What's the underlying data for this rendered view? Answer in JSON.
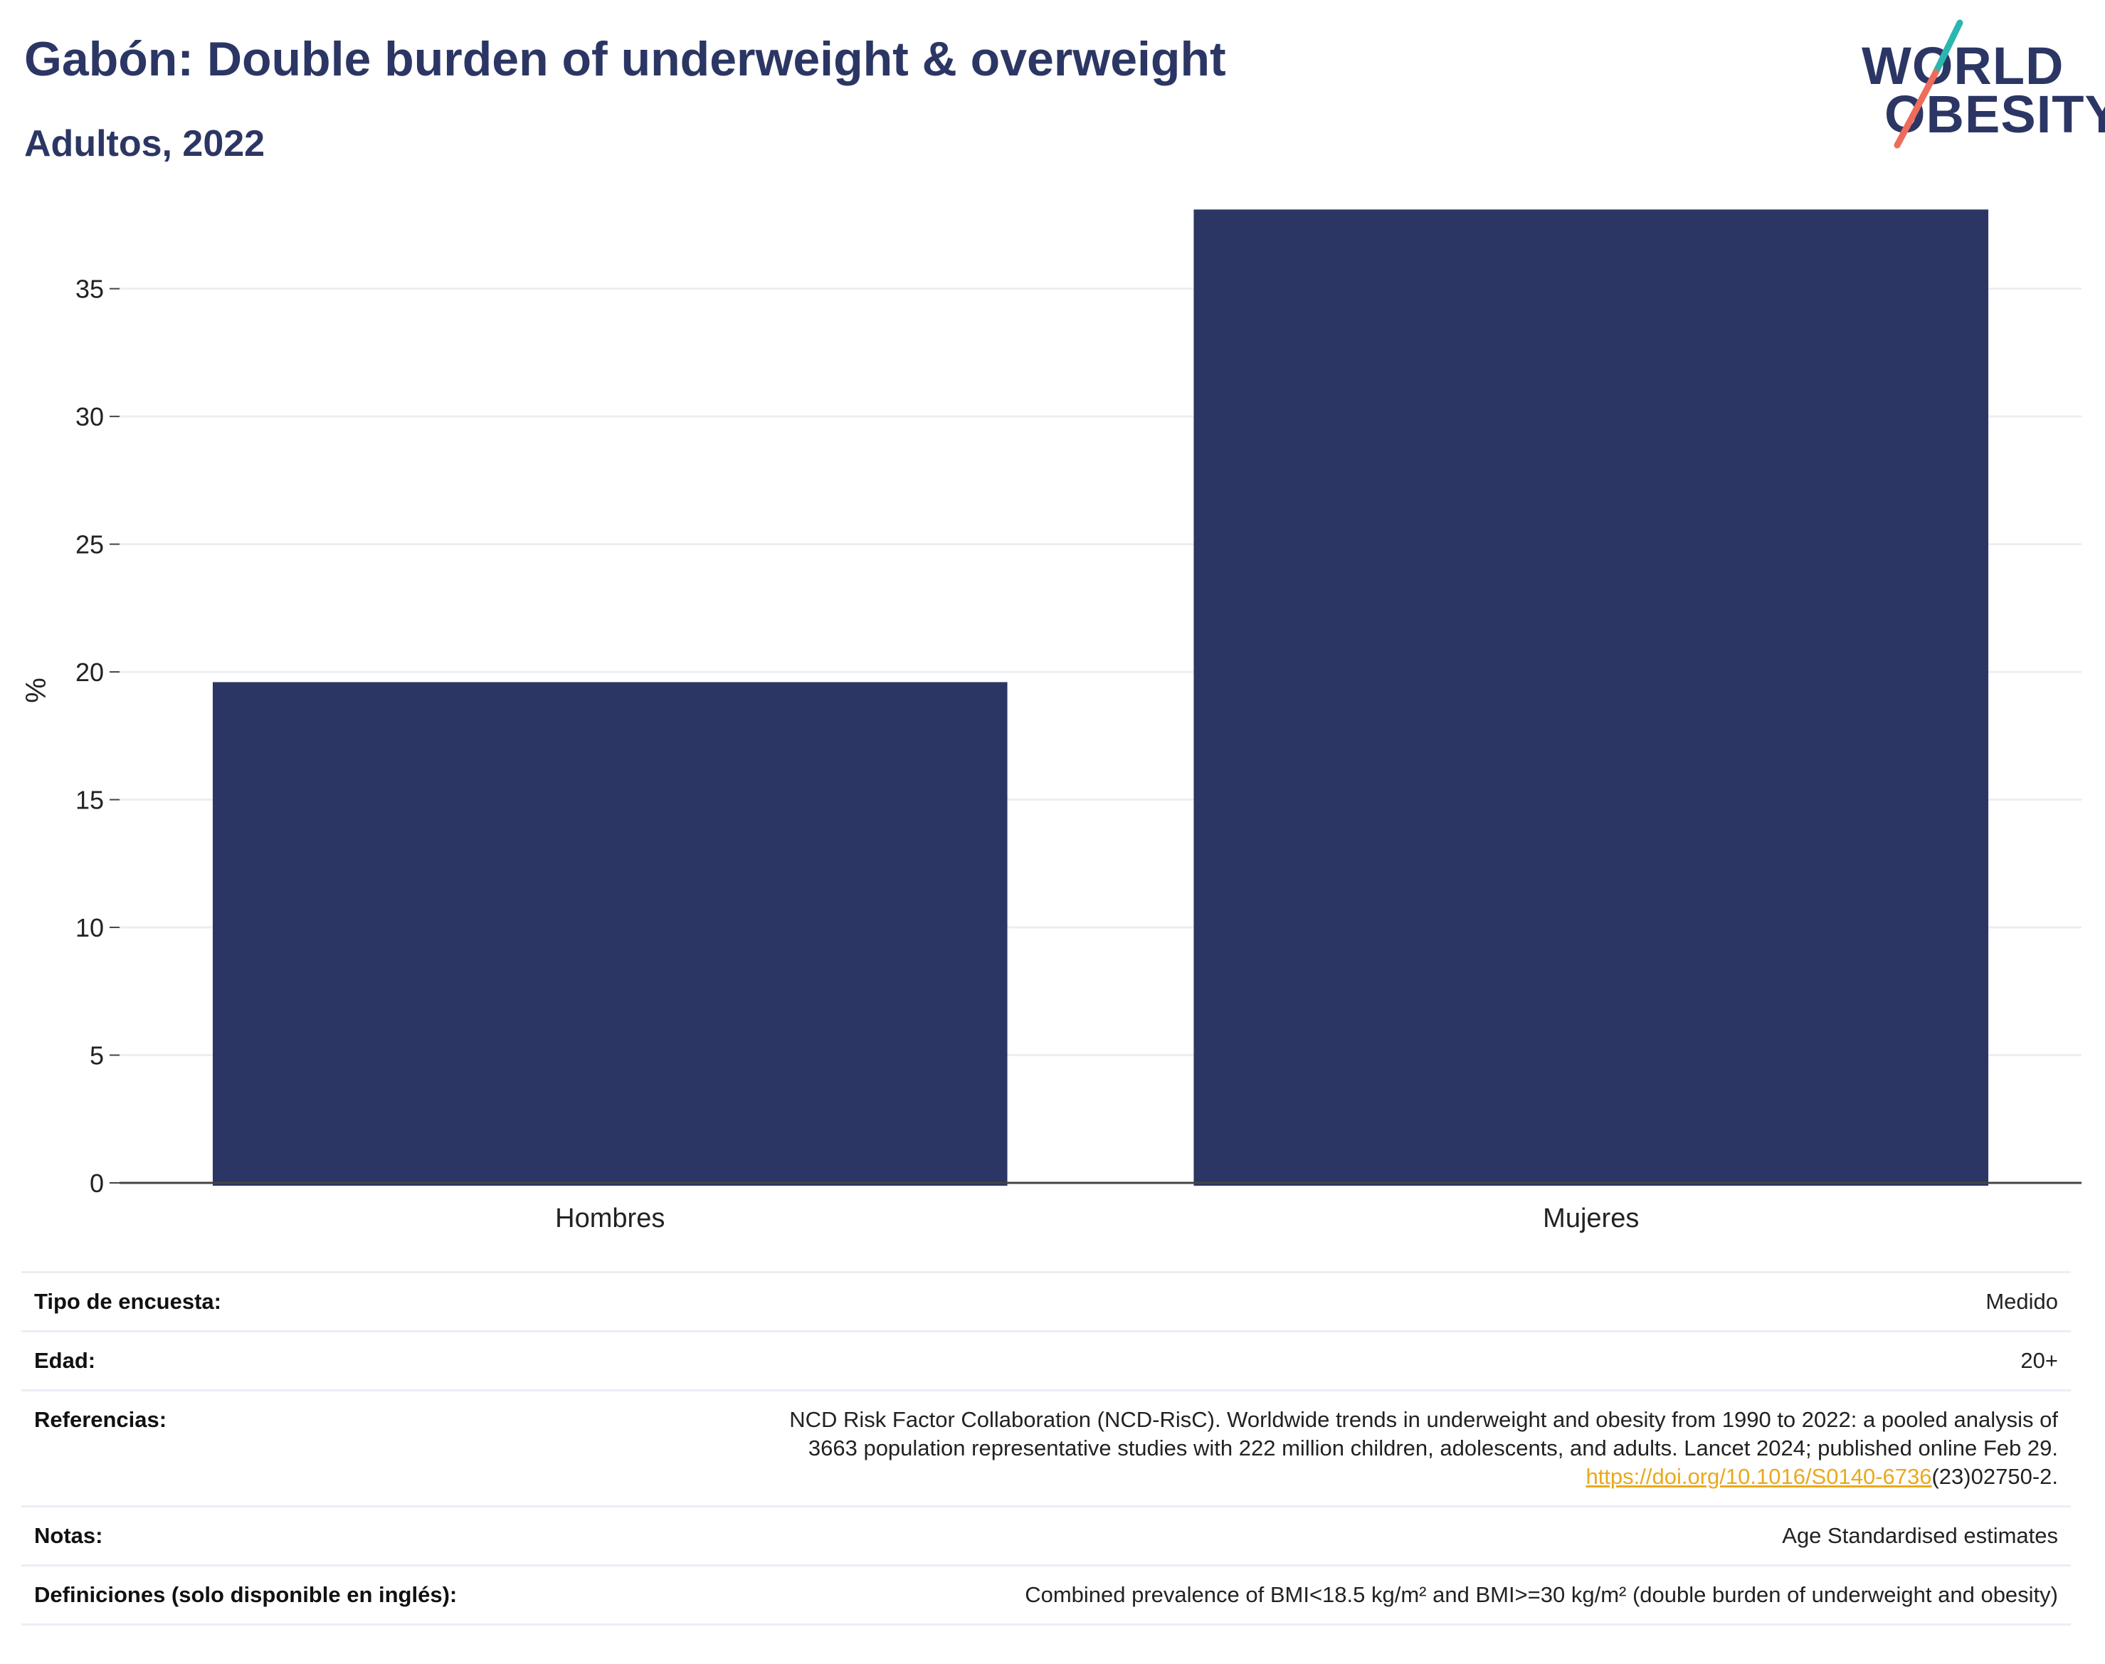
{
  "header": {
    "title": "Gabón: Double burden of underweight & overweight",
    "subtitle": "Adultos, 2022"
  },
  "logo": {
    "line1": "WORLD",
    "line2": "OBESITY",
    "accent_teal": "#2bb7b0",
    "accent_coral": "#ee6c5b"
  },
  "chart_data": {
    "type": "bar",
    "categories": [
      "Hombres",
      "Mujeres"
    ],
    "values": [
      19.6,
      38.1
    ],
    "title": "Gabón: Double burden of underweight & overweight",
    "subtitle": "Adultos, 2022",
    "xlabel": "",
    "ylabel": "%",
    "ylim": [
      0,
      38.5
    ],
    "yticks": [
      0,
      5,
      10,
      15,
      20,
      25,
      30,
      35
    ],
    "grid": true,
    "bar_color": "#2b3664"
  },
  "meta": {
    "survey_label": "Tipo de encuesta:",
    "survey_value": "Medido",
    "age_label": "Edad:",
    "age_value": "20+",
    "ref_label": "Referencias:",
    "ref_line1": "NCD Risk Factor Collaboration (NCD-RisC). Worldwide trends in underweight and obesity from 1990 to 2022: a pooled analysis of",
    "ref_line2": "3663 population representative studies with 222 million children, adolescents, and adults. Lancet 2024; published online Feb 29.",
    "ref_link": "https://doi.org/10.1016/S0140-6736",
    "ref_link_suffix": "(23)02750-2.",
    "notes_label": "Notas:",
    "notes_value": "Age Standardised estimates",
    "def_label": "Definiciones (solo disponible en inglés):",
    "def_value": "Combined prevalence of BMI<18.5 kg/m² and BMI>=30 kg/m² (double burden of underweight and obesity)"
  }
}
